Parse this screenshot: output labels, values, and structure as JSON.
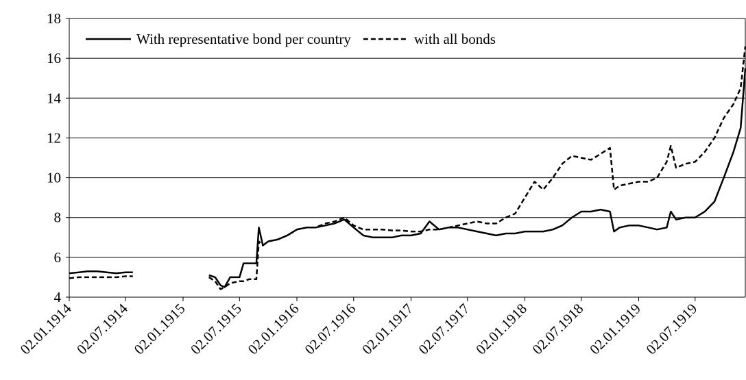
{
  "chart_data": {
    "type": "line",
    "x": [
      "02.01.1914",
      "02.02.1914",
      "02.03.1914",
      "02.04.1914",
      "02.05.1914",
      "02.06.1914",
      "02.07.1914",
      "25.07.1914",
      "02.01.1915",
      "26.03.1915",
      "15.04.1915",
      "02.05.1915",
      "15.05.1915",
      "02.06.1915",
      "02.07.1915",
      "15.07.1915",
      "02.08.1915",
      "25.08.1915",
      "02.09.1915",
      "15.09.1915",
      "02.10.1915",
      "02.11.1915",
      "02.12.1915",
      "02.01.1916",
      "02.02.1916",
      "02.03.1916",
      "02.04.1916",
      "02.05.1916",
      "02.06.1916",
      "02.07.1916",
      "02.08.1916",
      "02.09.1916",
      "02.10.1916",
      "02.11.1916",
      "02.12.1916",
      "02.01.1917",
      "02.02.1917",
      "02.03.1917",
      "02.04.1917",
      "02.05.1917",
      "02.06.1917",
      "02.07.1917",
      "02.08.1917",
      "02.09.1917",
      "02.10.1917",
      "02.11.1917",
      "02.12.1917",
      "02.01.1918",
      "02.02.1918",
      "02.03.1918",
      "02.04.1918",
      "02.05.1918",
      "02.06.1918",
      "02.07.1918",
      "02.08.1918",
      "02.09.1918",
      "02.10.1918",
      "15.10.1918",
      "02.11.1918",
      "02.12.1918",
      "02.01.1919",
      "02.02.1919",
      "02.03.1919",
      "02.04.1919",
      "15.04.1919",
      "02.05.1919",
      "02.06.1919",
      "02.07.1919",
      "02.08.1919",
      "02.09.1919",
      "02.10.1919",
      "02.11.1919",
      "25.11.1919",
      "10.12.1919"
    ],
    "series": [
      {
        "name": "With representative bond per country",
        "color": "#000000",
        "dash": "solid",
        "values": [
          5.2,
          5.25,
          5.3,
          5.3,
          5.25,
          5.2,
          5.25,
          5.25,
          null,
          5.1,
          5.0,
          4.6,
          4.5,
          5.0,
          5.0,
          5.7,
          5.7,
          5.7,
          7.5,
          6.6,
          6.8,
          6.9,
          7.1,
          7.4,
          7.5,
          7.5,
          7.6,
          7.7,
          7.9,
          7.5,
          7.1,
          7.0,
          7.0,
          7.0,
          7.1,
          7.1,
          7.2,
          7.8,
          7.4,
          7.5,
          7.5,
          7.4,
          7.3,
          7.2,
          7.1,
          7.2,
          7.2,
          7.3,
          7.3,
          7.3,
          7.4,
          7.6,
          8.0,
          8.3,
          8.3,
          8.4,
          8.3,
          7.3,
          7.5,
          7.6,
          7.6,
          7.5,
          7.4,
          7.5,
          8.3,
          7.9,
          8.0,
          8.0,
          8.3,
          8.8,
          10.0,
          11.3,
          12.5,
          15.5
        ]
      },
      {
        "name": "with all bonds",
        "color": "#000000",
        "dash": "dashed",
        "values": [
          4.95,
          5.0,
          5.0,
          5.0,
          5.0,
          5.0,
          5.05,
          5.05,
          null,
          5.0,
          4.8,
          4.4,
          4.5,
          4.7,
          4.8,
          4.8,
          4.9,
          4.9,
          6.8,
          6.6,
          6.8,
          6.9,
          7.1,
          7.4,
          7.5,
          7.5,
          7.7,
          7.8,
          8.0,
          7.6,
          7.4,
          7.4,
          7.4,
          7.35,
          7.35,
          7.3,
          7.3,
          7.4,
          7.4,
          7.5,
          7.6,
          7.7,
          7.8,
          7.7,
          7.7,
          8.0,
          8.2,
          9.0,
          9.8,
          9.4,
          10.0,
          10.7,
          11.1,
          11.0,
          10.9,
          11.2,
          11.5,
          9.4,
          9.6,
          9.7,
          9.8,
          9.8,
          10.0,
          10.8,
          11.6,
          10.5,
          10.7,
          10.8,
          11.3,
          12.0,
          13.0,
          13.7,
          14.5,
          16.6
        ]
      }
    ],
    "xlim": [
      "02.01.1914",
      "10.12.1919"
    ],
    "xticks": [
      "02.01.1914",
      "02.07.1914",
      "02.01.1915",
      "02.07.1915",
      "02.01.1916",
      "02.07.1916",
      "02.01.1917",
      "02.07.1917",
      "02.01.1918",
      "02.07.1918",
      "02.01.1919",
      "02.07.1919"
    ],
    "ylim": [
      4,
      18
    ],
    "yticks": [
      4,
      6,
      8,
      10,
      12,
      14,
      16,
      18
    ],
    "grid": true,
    "legend": "upper left"
  }
}
